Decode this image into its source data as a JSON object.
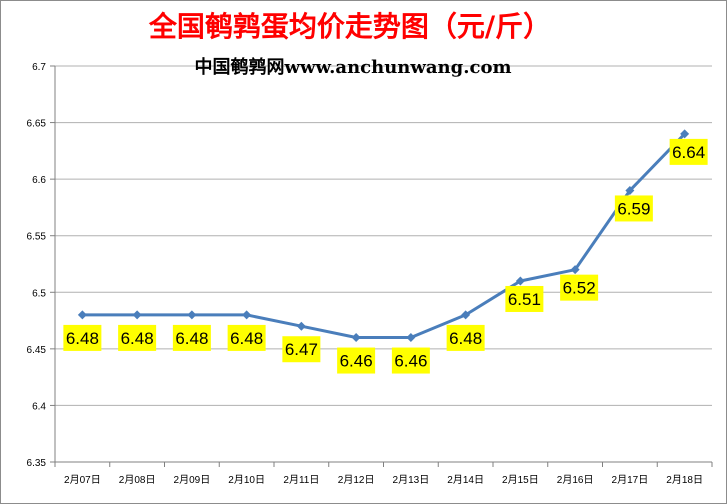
{
  "chart_data": {
    "type": "line",
    "title": "全国鹌鹑蛋均价走势图（元/斤）",
    "subtitle": "中国鹌鹑网www.anchunwang.com",
    "xlabel": "",
    "ylabel": "",
    "categories": [
      "2月07日",
      "2月08日",
      "2月09日",
      "2月10日",
      "2月11日",
      "2月12日",
      "2月13日",
      "2月14日",
      "2月15日",
      "2月16日",
      "2月17日",
      "2月18日"
    ],
    "series": [
      {
        "values": [
          6.48,
          6.48,
          6.48,
          6.48,
          6.47,
          6.46,
          6.46,
          6.48,
          6.51,
          6.52,
          6.59,
          6.64
        ],
        "data_labels": [
          "6.48",
          "6.48",
          "6.48",
          "6.48",
          "6.47",
          "6.46",
          "6.46",
          "6.48",
          "6.51",
          "6.52",
          "6.59",
          "6.64"
        ]
      }
    ],
    "ylim": [
      6.35,
      6.7
    ],
    "yticks": [
      "6.35",
      "6.4",
      "6.45",
      "6.5",
      "6.55",
      "6.6",
      "6.65",
      "6.7"
    ],
    "grid": true,
    "legend": "none",
    "colors": {
      "line": "#4a7ebb",
      "label_bg": "#ffff00",
      "title": "#ff0000",
      "grid": "#b0b0b0"
    }
  }
}
